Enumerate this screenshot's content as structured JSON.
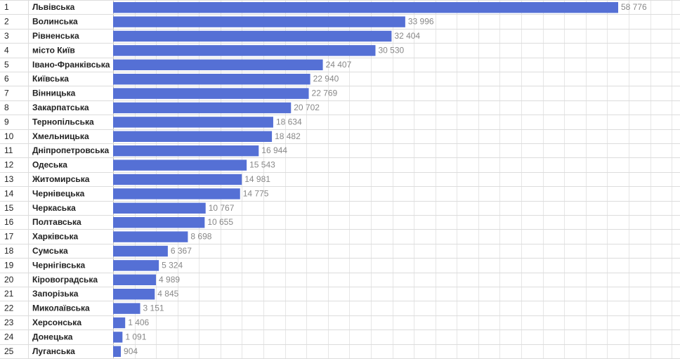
{
  "chart_data": {
    "type": "bar",
    "orientation": "horizontal",
    "title": "",
    "xlabel": "",
    "ylabel": "",
    "xlim": [
      0,
      60000
    ],
    "grid": true,
    "legend": "none",
    "bar_color": "#5570d5",
    "rows": [
      {
        "rank": "1",
        "name": "Львівська",
        "value": 58776,
        "label": "58 776"
      },
      {
        "rank": "2",
        "name": "Волинська",
        "value": 33996,
        "label": "33 996"
      },
      {
        "rank": "3",
        "name": "Рівненська",
        "value": 32404,
        "label": "32 404"
      },
      {
        "rank": "4",
        "name": "місто Київ",
        "value": 30530,
        "label": "30 530"
      },
      {
        "rank": "5",
        "name": "Івано-Франківська",
        "value": 24407,
        "label": "24 407"
      },
      {
        "rank": "6",
        "name": "Київська",
        "value": 22940,
        "label": "22 940"
      },
      {
        "rank": "7",
        "name": "Вінницька",
        "value": 22769,
        "label": "22 769"
      },
      {
        "rank": "8",
        "name": "Закарпатська",
        "value": 20702,
        "label": "20 702"
      },
      {
        "rank": "9",
        "name": "Тернопільська",
        "value": 18634,
        "label": "18 634"
      },
      {
        "rank": "10",
        "name": "Хмельницька",
        "value": 18482,
        "label": "18 482"
      },
      {
        "rank": "11",
        "name": "Дніпропетровська",
        "value": 16944,
        "label": "16 944"
      },
      {
        "rank": "12",
        "name": "Одеська",
        "value": 15543,
        "label": "15 543"
      },
      {
        "rank": "13",
        "name": "Житомирська",
        "value": 14981,
        "label": "14 981"
      },
      {
        "rank": "14",
        "name": "Чернівецька",
        "value": 14775,
        "label": "14 775"
      },
      {
        "rank": "15",
        "name": "Черкаська",
        "value": 10767,
        "label": "10 767"
      },
      {
        "rank": "16",
        "name": "Полтавська",
        "value": 10655,
        "label": "10 655"
      },
      {
        "rank": "17",
        "name": "Харківська",
        "value": 8698,
        "label": "8 698"
      },
      {
        "rank": "18",
        "name": "Сумська",
        "value": 6367,
        "label": "6 367"
      },
      {
        "rank": "19",
        "name": "Чернігівська",
        "value": 5324,
        "label": "5 324"
      },
      {
        "rank": "20",
        "name": "Кіровоградська",
        "value": 4989,
        "label": "4 989"
      },
      {
        "rank": "21",
        "name": "Запорізька",
        "value": 4845,
        "label": "4 845"
      },
      {
        "rank": "22",
        "name": "Миколаївська",
        "value": 3151,
        "label": "3 151"
      },
      {
        "rank": "23",
        "name": "Херсонська",
        "value": 1406,
        "label": "1 406"
      },
      {
        "rank": "24",
        "name": "Донецька",
        "value": 1091,
        "label": "1 091"
      },
      {
        "rank": "25",
        "name": "Луганська",
        "value": 904,
        "label": "904"
      }
    ]
  }
}
